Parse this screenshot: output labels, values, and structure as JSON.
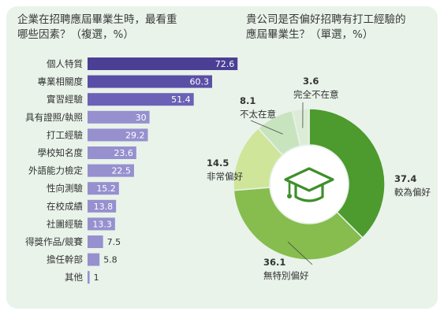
{
  "chart_data": [
    {
      "type": "bar",
      "orientation": "horizontal",
      "title": "企業在招聘應屆畢業生時，最看重\n哪些因素？（複選，%）",
      "categories": [
        "個人特質",
        "專業相關度",
        "實習經驗",
        "具有證照/執照",
        "打工經驗",
        "學校知名度",
        "外語能力檢定",
        "性向測驗",
        "在校成績",
        "社團經驗",
        "得獎作品/競賽",
        "擔任幹部",
        "其他"
      ],
      "values": [
        72.6,
        60.3,
        51.4,
        30,
        29.2,
        23.6,
        22.5,
        15.2,
        13.8,
        13.3,
        7.5,
        5.8,
        1
      ],
      "value_labels": [
        "72.6",
        "60.3",
        "51.4",
        "30",
        "29.2",
        "23.6",
        "22.5",
        "15.2",
        "13.8",
        "13.3",
        "7.5",
        "5.8",
        "1"
      ],
      "bar_colors": [
        "#4a3f94",
        "#5a4fa6",
        "#6b61b6",
        "#9690cf",
        "#9690cf",
        "#9690cf",
        "#9690cf",
        "#9690cf",
        "#9690cf",
        "#9690cf",
        "#9690cf",
        "#9690cf",
        "#9690cf"
      ],
      "xlim": [
        0,
        100
      ],
      "grid": false
    },
    {
      "type": "pie",
      "style": "donut",
      "title": "貴公司是否偏好招聘有打工經驗的\n應屆畢業生？（單選，%）",
      "slices": [
        {
          "name": "較為偏好",
          "value": 37.4,
          "label": "37.4",
          "color": "#4d9a2e"
        },
        {
          "name": "無特別偏好",
          "value": 36.1,
          "label": "36.1",
          "color": "#86bd4e"
        },
        {
          "name": "非常偏好",
          "value": 14.5,
          "label": "14.5",
          "color": "#cfe59a"
        },
        {
          "name": "不太在意",
          "value": 8.1,
          "label": "8.1",
          "color": "#c8e4bf"
        },
        {
          "name": "完全不在意",
          "value": 3.6,
          "label": "3.6",
          "color": "#ddecd6"
        }
      ],
      "center_icon": "graduation-cap-icon",
      "center_color": "#3f8f2a"
    }
  ]
}
